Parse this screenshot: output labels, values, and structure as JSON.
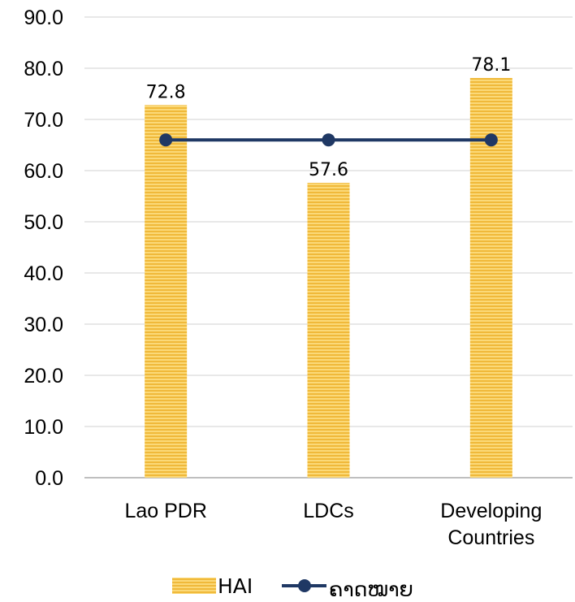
{
  "chart_data": {
    "type": "bar",
    "categories": [
      "Lao PDR",
      "LDCs",
      "Developing Countries"
    ],
    "category_lines": [
      [
        "Lao PDR"
      ],
      [
        "LDCs"
      ],
      [
        "Developing",
        "Countries"
      ]
    ],
    "series": [
      {
        "name": "HAI",
        "kind": "bar",
        "values": [
          72.8,
          57.6,
          78.1
        ],
        "value_labels": [
          "72.8",
          "57.6",
          "78.1"
        ],
        "color": "#F5C14A"
      },
      {
        "name": "ຄາດໝາຍ",
        "kind": "line",
        "values": [
          66,
          66,
          66
        ],
        "color": "#1F3864"
      }
    ],
    "ylim": [
      0,
      90
    ],
    "yticks": [
      "0.0",
      "10.0",
      "20.0",
      "30.0",
      "40.0",
      "50.0",
      "60.0",
      "70.0",
      "80.0",
      "90.0"
    ],
    "grid": true,
    "legend": "bottom",
    "title": "",
    "xlabel": "",
    "ylabel": ""
  }
}
